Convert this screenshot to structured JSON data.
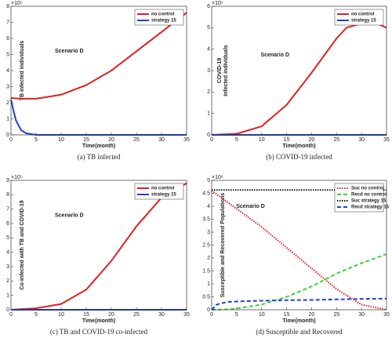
{
  "chart_data": [
    {
      "type": "line",
      "caption": "(a)  TB infected",
      "xlabel": "Time(month)",
      "ylabel": [
        "TB infected individuals"
      ],
      "y_multiplier": "×10⁵",
      "annotation": "Scenario D",
      "x": [
        0,
        0.5,
        1,
        2,
        3,
        5,
        10,
        15,
        20,
        25,
        30,
        35
      ],
      "series": [
        {
          "name": "no control",
          "color": "#e02020",
          "style": "solid",
          "values": [
            2.3,
            2.28,
            2.27,
            2.25,
            2.25,
            2.25,
            2.5,
            3.1,
            4.0,
            5.2,
            6.4,
            7.6
          ]
        },
        {
          "name": "strategy 15",
          "color": "#2040d0",
          "style": "solid",
          "values": [
            2.2,
            1.5,
            0.9,
            0.3,
            0.1,
            0,
            0,
            0,
            0,
            0,
            0,
            0
          ]
        }
      ],
      "xlim": [
        0,
        35
      ],
      "xticks": [
        0,
        5,
        10,
        15,
        20,
        25,
        30,
        35
      ],
      "ylim": [
        0,
        8
      ],
      "yticks": [
        0,
        1,
        2,
        3,
        4,
        5,
        6,
        7,
        8
      ]
    },
    {
      "type": "line",
      "caption": "(b)  COVID-19 infected",
      "xlabel": "Time(month)",
      "ylabel": [
        "COVID-19",
        "Infected individuals"
      ],
      "y_multiplier": "×10⁵",
      "annotation": "Scenario D",
      "x": [
        0,
        5,
        10,
        15,
        20,
        25,
        27,
        30,
        33,
        35
      ],
      "series": [
        {
          "name": "no control",
          "color": "#e02020",
          "style": "solid",
          "values": [
            0,
            0.05,
            0.4,
            1.4,
            2.9,
            4.5,
            5.0,
            5.2,
            5.2,
            5.0
          ]
        },
        {
          "name": "strategy 15",
          "color": "#2040d0",
          "style": "solid",
          "values": [
            0,
            0,
            0,
            0,
            0,
            0,
            0,
            0,
            0,
            0
          ]
        }
      ],
      "xlim": [
        0,
        35
      ],
      "xticks": [
        0,
        5,
        10,
        15,
        20,
        25,
        30,
        35
      ],
      "ylim": [
        0,
        6
      ],
      "yticks": [
        0,
        1,
        2,
        3,
        4,
        5,
        6
      ]
    },
    {
      "type": "line",
      "caption": "(c)  TB and COVID-19 co-infected",
      "xlabel": "Time(month)",
      "ylabel": [
        "Co-infected with TB and COVID-19"
      ],
      "y_multiplier": "×10⁵",
      "annotation": "Scenario D",
      "x": [
        0,
        5,
        10,
        15,
        20,
        25,
        30,
        35
      ],
      "series": [
        {
          "name": "no control",
          "color": "#e02020",
          "style": "solid",
          "values": [
            0,
            0.1,
            0.4,
            1.4,
            3.4,
            5.8,
            7.8,
            8.8
          ]
        },
        {
          "name": "strategy 15",
          "color": "#2040d0",
          "style": "solid",
          "values": [
            0,
            0,
            0,
            0,
            0,
            0,
            0,
            0
          ]
        }
      ],
      "xlim": [
        0,
        35
      ],
      "xticks": [
        0,
        5,
        10,
        15,
        20,
        25,
        30,
        35
      ],
      "ylim": [
        0,
        9
      ],
      "yticks": [
        0,
        1,
        2,
        3,
        4,
        5,
        6,
        7,
        8,
        9
      ]
    },
    {
      "type": "line",
      "caption": "(d)  Susceptible and Recovered",
      "xlabel": "Time(month)",
      "ylabel": [
        "Susceptible and Recovered Populations"
      ],
      "y_multiplier": "×10⁶",
      "annotation": "Scenario D",
      "x": [
        0,
        1,
        3,
        5,
        10,
        15,
        20,
        25,
        30,
        35
      ],
      "series": [
        {
          "name": "Suc no control",
          "color": "#e02020",
          "style": "dotted",
          "values": [
            4.6,
            4.46,
            4.18,
            3.9,
            3.2,
            2.4,
            1.6,
            0.8,
            0.2,
            0
          ]
        },
        {
          "name": "Recd no control",
          "color": "#40d040",
          "style": "dashed",
          "values": [
            0,
            0,
            0.02,
            0.05,
            0.2,
            0.5,
            0.9,
            1.4,
            1.8,
            2.15
          ]
        },
        {
          "name": "Suc strategy 15",
          "color": "#111111",
          "style": "dotted",
          "values": [
            4.63,
            4.63,
            4.63,
            4.63,
            4.63,
            4.63,
            4.63,
            4.63,
            4.63,
            4.63
          ]
        },
        {
          "name": "Recd strategy 15",
          "color": "#2040d0",
          "style": "dashed",
          "values": [
            0,
            0.2,
            0.3,
            0.32,
            0.35,
            0.37,
            0.38,
            0.4,
            0.42,
            0.43
          ]
        }
      ],
      "xlim": [
        0,
        35
      ],
      "xticks": [
        0,
        5,
        10,
        15,
        20,
        25,
        30,
        35
      ],
      "ylim": [
        0,
        5
      ],
      "yticks": [
        0,
        0.5,
        1,
        1.5,
        2,
        2.5,
        3,
        3.5,
        4,
        4.5,
        5
      ]
    }
  ]
}
